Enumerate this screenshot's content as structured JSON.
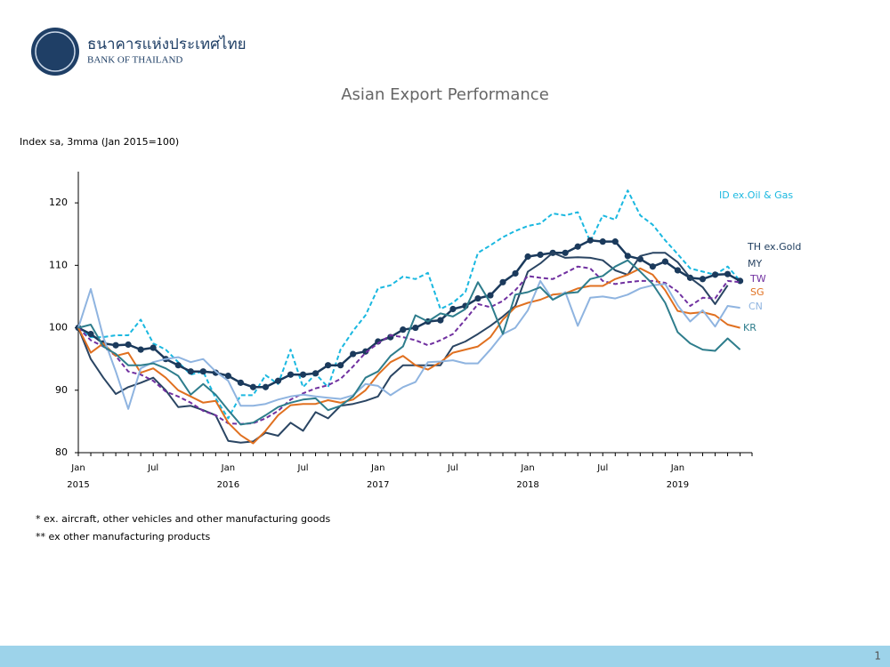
{
  "header": {
    "org_thai": "ธนาคารแห่งประเทศไทย",
    "org_en": "BANK OF THAILAND"
  },
  "footnotes": [
    "* ex. aircraft, other vehicles and other manufacturing goods",
    "** ex other manufacturing products"
  ],
  "page_number": "1",
  "chart_data": {
    "type": "line",
    "title": "Asian Export Performance",
    "y_label": "Index sa, 3mma (Jan 2015=100)",
    "categories": [
      "Jan",
      null,
      null,
      null,
      null,
      null,
      "Jul",
      null,
      null,
      null,
      null,
      null,
      "Jan",
      null,
      null,
      null,
      null,
      null,
      "Jul",
      null,
      null,
      null,
      null,
      null,
      "Jan",
      null,
      null,
      null,
      null,
      null,
      "Jul",
      null,
      null,
      null,
      null,
      null,
      "Jan",
      null,
      null,
      null,
      null,
      null,
      "Jul",
      null,
      null,
      null,
      null,
      null,
      "Jan",
      null,
      null,
      null,
      null,
      null
    ],
    "years": [
      "2015",
      "2016",
      "2017",
      "2018",
      "2019"
    ],
    "ylim": [
      80,
      125
    ],
    "yticks": [
      80,
      90,
      100,
      110,
      120
    ],
    "series": [
      {
        "name": "ID ex.Oil & Gas",
        "color": "#1ab8e0",
        "dashed": true,
        "values": [
          100,
          98.5,
          98.5,
          98.8,
          98.8,
          101.3,
          97.5,
          96.5,
          94.5,
          92.5,
          93,
          88.7,
          85.5,
          89.2,
          89.2,
          92.4,
          91,
          96.5,
          90.5,
          92.6,
          90.5,
          96.5,
          99.5,
          102,
          106.3,
          106.8,
          108.2,
          107.8,
          108.8,
          103,
          104,
          105.7,
          112,
          113.2,
          114.5,
          115.5,
          116.3,
          116.7,
          118.3,
          118,
          118.5,
          113.8,
          118,
          117.3,
          122,
          118,
          116.5,
          114,
          111.8,
          109.5,
          109,
          108.5,
          109.8,
          107.5
        ]
      },
      {
        "name": "TH ex.Gold",
        "color": "#1b3a5c",
        "markers": true,
        "values": [
          100,
          99,
          97.5,
          97.2,
          97.3,
          96.5,
          96.8,
          95,
          94,
          93,
          93,
          92.8,
          92.3,
          91.2,
          90.5,
          90.5,
          91.5,
          92.5,
          92.5,
          92.7,
          94,
          94,
          95.8,
          96.2,
          97.8,
          98.5,
          99.7,
          100,
          101,
          101.2,
          103,
          103.5,
          104.7,
          105.2,
          107.3,
          108.7,
          111.4,
          111.7,
          112,
          112,
          113,
          114,
          113.8,
          113.8,
          111.5,
          111,
          109.8,
          110.6,
          109.2,
          108,
          107.8,
          108.5,
          108.6,
          107.5
        ]
      },
      {
        "name": "MY",
        "color": "#2a4563",
        "values": [
          100,
          95,
          92,
          89.4,
          90.5,
          91.2,
          92,
          90,
          87.3,
          87.5,
          86.8,
          86,
          81.9,
          81.6,
          81.8,
          83.2,
          82.7,
          84.8,
          83.5,
          86.5,
          85.5,
          87.5,
          87.8,
          88.3,
          89,
          92.2,
          94,
          94,
          94,
          94,
          97,
          97.8,
          99,
          100.3,
          101.8,
          103.5,
          109,
          110.3,
          112,
          111.2,
          111.3,
          111.2,
          110.8,
          109.2,
          108.5,
          111.5,
          112,
          112,
          110.5,
          108,
          106.5,
          103.8,
          106.8,
          null
        ]
      },
      {
        "name": "TW",
        "color": "#7030a0",
        "dashed": true,
        "values": [
          100,
          98,
          97,
          95.5,
          93,
          92.5,
          91.5,
          89.8,
          89,
          88,
          86.7,
          86,
          84.7,
          84.6,
          84.7,
          85.5,
          86.7,
          88.5,
          89.5,
          90.3,
          90.8,
          91.8,
          93.8,
          96,
          97.5,
          98.8,
          98.5,
          98,
          97.2,
          98,
          99,
          101.3,
          103.8,
          103.3,
          104.3,
          106,
          108.3,
          108,
          107.8,
          108.8,
          109.8,
          109.5,
          107.5,
          107,
          107.3,
          107.5,
          107.5,
          107.2,
          105.8,
          103.5,
          104.8,
          104.7,
          107.5,
          107.3
        ]
      },
      {
        "name": "SG",
        "color": "#e07020",
        "values": [
          100,
          96,
          97.5,
          95.5,
          96,
          92.8,
          93.5,
          92,
          90,
          89,
          88,
          88.3,
          84.8,
          82.8,
          81.5,
          83.5,
          86,
          87.6,
          87.8,
          87.8,
          88.4,
          88,
          88.5,
          90,
          92.5,
          94.5,
          95.5,
          94,
          93.3,
          94.5,
          96,
          96.5,
          97,
          98.5,
          101.3,
          103.3,
          104,
          104.5,
          105.3,
          105.5,
          106.3,
          106.7,
          106.7,
          107.8,
          108.5,
          109.5,
          108.5,
          106,
          102.7,
          102.3,
          102.5,
          102,
          100.5,
          100
        ]
      },
      {
        "name": "CN",
        "color": "#8fb4e0",
        "values": [
          100,
          106.2,
          98.5,
          93,
          87,
          93.5,
          94.5,
          95,
          95.3,
          94.5,
          95,
          93,
          91.5,
          87.5,
          87.5,
          87.8,
          88.5,
          89,
          89.3,
          89,
          88.8,
          88.6,
          89.2,
          91,
          90.7,
          89.2,
          90.5,
          91.3,
          94.5,
          94.6,
          94.8,
          94.3,
          94.3,
          96.5,
          99,
          100,
          102.8,
          107.5,
          104.5,
          105.7,
          100.3,
          104.8,
          105,
          104.7,
          105.3,
          106.3,
          106.8,
          107,
          103.6,
          101,
          102.8,
          100.2,
          103.5,
          103.2
        ]
      },
      {
        "name": "KR",
        "color": "#2e7d8c",
        "values": [
          100,
          100.5,
          97,
          95.8,
          94,
          94,
          94.3,
          93.5,
          92.3,
          89.3,
          91,
          89.3,
          86.8,
          84.5,
          84.8,
          86,
          87.3,
          88,
          88.5,
          88.7,
          86.8,
          87.5,
          89,
          92,
          93,
          95.5,
          97,
          102,
          101,
          102.3,
          101.8,
          103,
          107.3,
          104,
          99,
          105.3,
          105.7,
          106.5,
          104.5,
          105.5,
          105.7,
          107.8,
          108.3,
          109.8,
          110.8,
          109,
          107,
          104,
          99.3,
          97.5,
          96.5,
          96.3,
          98.3,
          96.5
        ]
      }
    ]
  }
}
